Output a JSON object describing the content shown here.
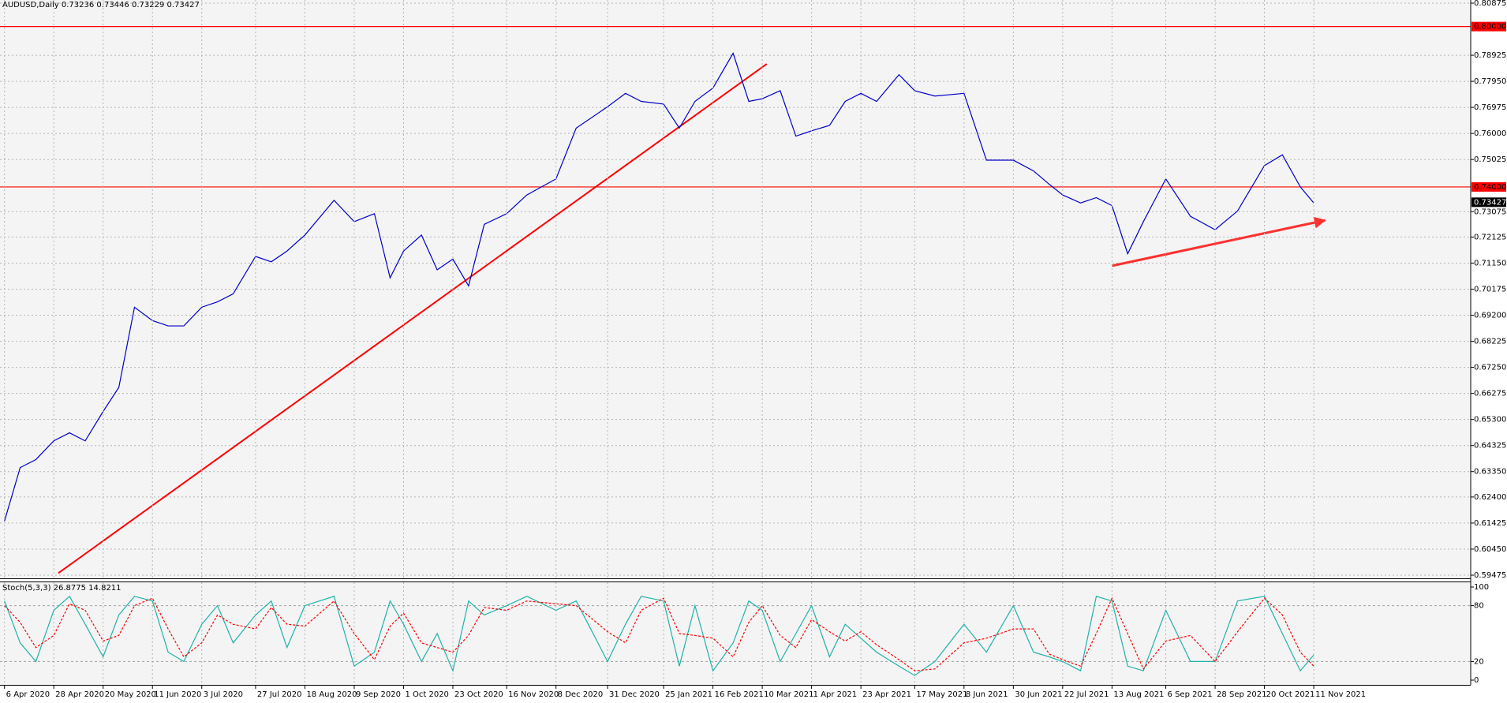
{
  "chart_data": [
    {
      "type": "line",
      "title": "AUDUSD,Daily  0.73236 0.73446 0.73229 0.73427",
      "x": [
        "2020-04-06",
        "2020-04-13",
        "2020-04-20",
        "2020-04-28",
        "2020-05-05",
        "2020-05-12",
        "2020-05-20",
        "2020-05-27",
        "2020-06-03",
        "2020-06-11",
        "2020-06-18",
        "2020-06-25",
        "2020-07-03",
        "2020-07-10",
        "2020-07-17",
        "2020-07-27",
        "2020-08-03",
        "2020-08-10",
        "2020-08-18",
        "2020-08-31",
        "2020-09-09",
        "2020-09-18",
        "2020-09-25",
        "2020-10-01",
        "2020-10-09",
        "2020-10-16",
        "2020-10-23",
        "2020-10-30",
        "2020-11-06",
        "2020-11-16",
        "2020-11-25",
        "2020-12-08",
        "2020-12-17",
        "2020-12-31",
        "2021-01-08",
        "2021-01-15",
        "2021-01-25",
        "2021-02-01",
        "2021-02-08",
        "2021-02-16",
        "2021-02-25",
        "2021-03-04",
        "2021-03-10",
        "2021-03-18",
        "2021-03-25",
        "2021-04-01",
        "2021-04-09",
        "2021-04-16",
        "2021-04-23",
        "2021-04-30",
        "2021-05-10",
        "2021-05-17",
        "2021-05-26",
        "2021-06-08",
        "2021-06-18",
        "2021-06-30",
        "2021-07-09",
        "2021-07-16",
        "2021-07-22",
        "2021-07-30",
        "2021-08-06",
        "2021-08-13",
        "2021-08-20",
        "2021-08-27",
        "2021-09-06",
        "2021-09-17",
        "2021-09-28",
        "2021-10-08",
        "2021-10-20",
        "2021-10-28",
        "2021-11-05",
        "2021-11-11"
      ],
      "series": [
        {
          "color": "#0000c8",
          "values": [
            0.615,
            0.635,
            0.638,
            0.645,
            0.648,
            0.645,
            0.656,
            0.665,
            0.695,
            0.69,
            0.688,
            0.688,
            0.695,
            0.697,
            0.7,
            0.714,
            0.712,
            0.716,
            0.722,
            0.735,
            0.727,
            0.73,
            0.706,
            0.716,
            0.722,
            0.709,
            0.713,
            0.703,
            0.726,
            0.73,
            0.737,
            0.743,
            0.762,
            0.77,
            0.775,
            0.772,
            0.771,
            0.762,
            0.772,
            0.777,
            0.79,
            0.772,
            0.773,
            0.776,
            0.759,
            0.761,
            0.763,
            0.772,
            0.775,
            0.772,
            0.782,
            0.776,
            0.774,
            0.775,
            0.75,
            0.75,
            0.746,
            0.741,
            0.737,
            0.734,
            0.736,
            0.733,
            0.715,
            0.727,
            0.743,
            0.729,
            0.724,
            0.731,
            0.748,
            0.752,
            0.74,
            0.734
          ]
        }
      ],
      "xlim": [
        "2020-04-04",
        "2022-01-20"
      ],
      "xticks": [
        {
          "value": "2020-04-06",
          "label": "6 Apr 2020"
        },
        {
          "value": "2020-04-28",
          "label": "28 Apr 2020"
        },
        {
          "value": "2020-05-20",
          "label": "20 May 2020"
        },
        {
          "value": "2020-06-11",
          "label": "11 Jun 2020"
        },
        {
          "value": "2020-07-03",
          "label": "3 Jul 2020"
        },
        {
          "value": "2020-07-27",
          "label": "27 Jul 2020"
        },
        {
          "value": "2020-08-18",
          "label": "18 Aug 2020"
        },
        {
          "value": "2020-09-09",
          "label": "9 Sep 2020"
        },
        {
          "value": "2020-10-01",
          "label": "1 Oct 2020"
        },
        {
          "value": "2020-10-23",
          "label": "23 Oct 2020"
        },
        {
          "value": "2020-11-16",
          "label": "16 Nov 2020"
        },
        {
          "value": "2020-12-08",
          "label": "8 Dec 2020"
        },
        {
          "value": "2020-12-31",
          "label": "31 Dec 2020"
        },
        {
          "value": "2021-01-25",
          "label": "25 Jan 2021"
        },
        {
          "value": "2021-02-16",
          "label": "16 Feb 2021"
        },
        {
          "value": "2021-03-10",
          "label": "10 Mar 2021"
        },
        {
          "value": "2021-04-01",
          "label": "1 Apr 2021"
        },
        {
          "value": "2021-04-23",
          "label": "23 Apr 2021"
        },
        {
          "value": "2021-05-17",
          "label": "17 May 2021"
        },
        {
          "value": "2021-06-08",
          "label": "8 Jun 2021"
        },
        {
          "value": "2021-06-30",
          "label": "30 Jun 2021"
        },
        {
          "value": "2021-07-22",
          "label": "22 Jul 2021"
        },
        {
          "value": "2021-08-13",
          "label": "13 Aug 2021"
        },
        {
          "value": "2021-09-06",
          "label": "6 Sep 2021"
        },
        {
          "value": "2021-09-28",
          "label": "28 Sep 2021"
        },
        {
          "value": "2021-10-20",
          "label": "20 Oct 2021"
        },
        {
          "value": "2021-11-11",
          "label": "11 Nov 2021"
        }
      ],
      "ylim": [
        0.59475,
        0.80875
      ],
      "yticks": [
        0.80875,
        0.78925,
        {
          "value": 0.7795,
          "label": "0.77950"
        },
        0.76975,
        {
          "value": 0.76,
          "label": "0.76000"
        },
        0.75025,
        0.73075,
        0.72125,
        {
          "value": 0.7115,
          "label": "0.71150"
        },
        0.70175,
        {
          "value": 0.692,
          "label": "0.69200"
        },
        0.68225,
        {
          "value": 0.6725,
          "label": "0.67250"
        },
        0.66275,
        {
          "value": 0.653,
          "label": "0.65300"
        },
        0.64325,
        {
          "value": 0.6335,
          "label": "0.63350"
        },
        {
          "value": 0.624,
          "label": "0.62400"
        },
        0.61425,
        {
          "value": 0.6045,
          "label": "0.60450"
        },
        0.59475
      ],
      "grid": true,
      "hlines": [
        {
          "value": 0.8,
          "label": "0.80000",
          "color": "#ff0000"
        },
        {
          "value": 0.74,
          "label": "0.74000",
          "color": "#ff0000"
        }
      ],
      "current_price": {
        "value": 0.73427,
        "label": "0.73427"
      },
      "trendlines": [
        {
          "x": [
            "2020-04-30",
            "2021-03-12"
          ],
          "y": [
            0.5955,
            0.786
          ],
          "color": "#ff0000"
        }
      ],
      "arrows": [
        {
          "x": [
            "2021-08-13",
            "2021-11-16"
          ],
          "y": [
            0.7105,
            0.7275
          ],
          "color": "#ff3030"
        }
      ]
    },
    {
      "type": "line",
      "title": "Stoch(5,3,3) 26.8775 14.8211",
      "x": [
        "2020-04-06",
        "2020-04-13",
        "2020-04-20",
        "2020-04-28",
        "2020-05-05",
        "2020-05-12",
        "2020-05-20",
        "2020-05-27",
        "2020-06-03",
        "2020-06-11",
        "2020-06-18",
        "2020-06-25",
        "2020-07-03",
        "2020-07-10",
        "2020-07-17",
        "2020-07-27",
        "2020-08-03",
        "2020-08-10",
        "2020-08-18",
        "2020-08-31",
        "2020-09-09",
        "2020-09-18",
        "2020-09-25",
        "2020-10-01",
        "2020-10-09",
        "2020-10-16",
        "2020-10-23",
        "2020-10-30",
        "2020-11-06",
        "2020-11-16",
        "2020-11-25",
        "2020-12-08",
        "2020-12-17",
        "2020-12-31",
        "2021-01-08",
        "2021-01-15",
        "2021-01-25",
        "2021-02-01",
        "2021-02-08",
        "2021-02-16",
        "2021-02-25",
        "2021-03-04",
        "2021-03-10",
        "2021-03-18",
        "2021-03-25",
        "2021-04-01",
        "2021-04-09",
        "2021-04-16",
        "2021-04-23",
        "2021-04-30",
        "2021-05-10",
        "2021-05-17",
        "2021-05-26",
        "2021-06-08",
        "2021-06-18",
        "2021-06-30",
        "2021-07-09",
        "2021-07-16",
        "2021-07-22",
        "2021-07-30",
        "2021-08-06",
        "2021-08-13",
        "2021-08-20",
        "2021-08-27",
        "2021-09-06",
        "2021-09-17",
        "2021-09-28",
        "2021-10-08",
        "2021-10-20",
        "2021-10-28",
        "2021-11-05",
        "2021-11-11"
      ],
      "series": [
        {
          "color": "#20b2aa",
          "values": [
            85,
            40,
            20,
            75,
            90,
            60,
            25,
            70,
            90,
            85,
            30,
            20,
            60,
            80,
            40,
            70,
            85,
            35,
            80,
            90,
            15,
            30,
            85,
            60,
            20,
            50,
            10,
            85,
            70,
            80,
            90,
            75,
            85,
            20,
            60,
            90,
            85,
            15,
            80,
            10,
            40,
            85,
            75,
            20,
            50,
            80,
            25,
            60,
            45,
            30,
            15,
            5,
            20,
            60,
            30,
            80,
            30,
            25,
            20,
            10,
            90,
            85,
            15,
            10,
            75,
            20,
            20,
            85,
            90,
            50,
            10,
            27
          ]
        },
        {
          "color": "#ff0000",
          "dashed": true,
          "values": [
            80,
            62,
            35,
            48,
            82,
            75,
            42,
            48,
            80,
            88,
            55,
            25,
            40,
            70,
            60,
            55,
            78,
            60,
            58,
            85,
            50,
            22,
            58,
            72,
            40,
            35,
            30,
            48,
            78,
            75,
            85,
            82,
            80,
            52,
            40,
            75,
            88,
            50,
            48,
            45,
            25,
            62,
            80,
            48,
            35,
            65,
            52,
            42,
            52,
            38,
            22,
            10,
            12,
            40,
            45,
            55,
            55,
            28,
            22,
            15,
            50,
            88,
            50,
            12,
            42,
            48,
            20,
            52,
            88,
            70,
            30,
            15
          ]
        }
      ],
      "xlim": [
        "2020-04-04",
        "2022-01-20"
      ],
      "ylim": [
        0,
        100
      ],
      "yticks": [
        0,
        20,
        80,
        100
      ],
      "levels": [
        20,
        80
      ]
    }
  ]
}
